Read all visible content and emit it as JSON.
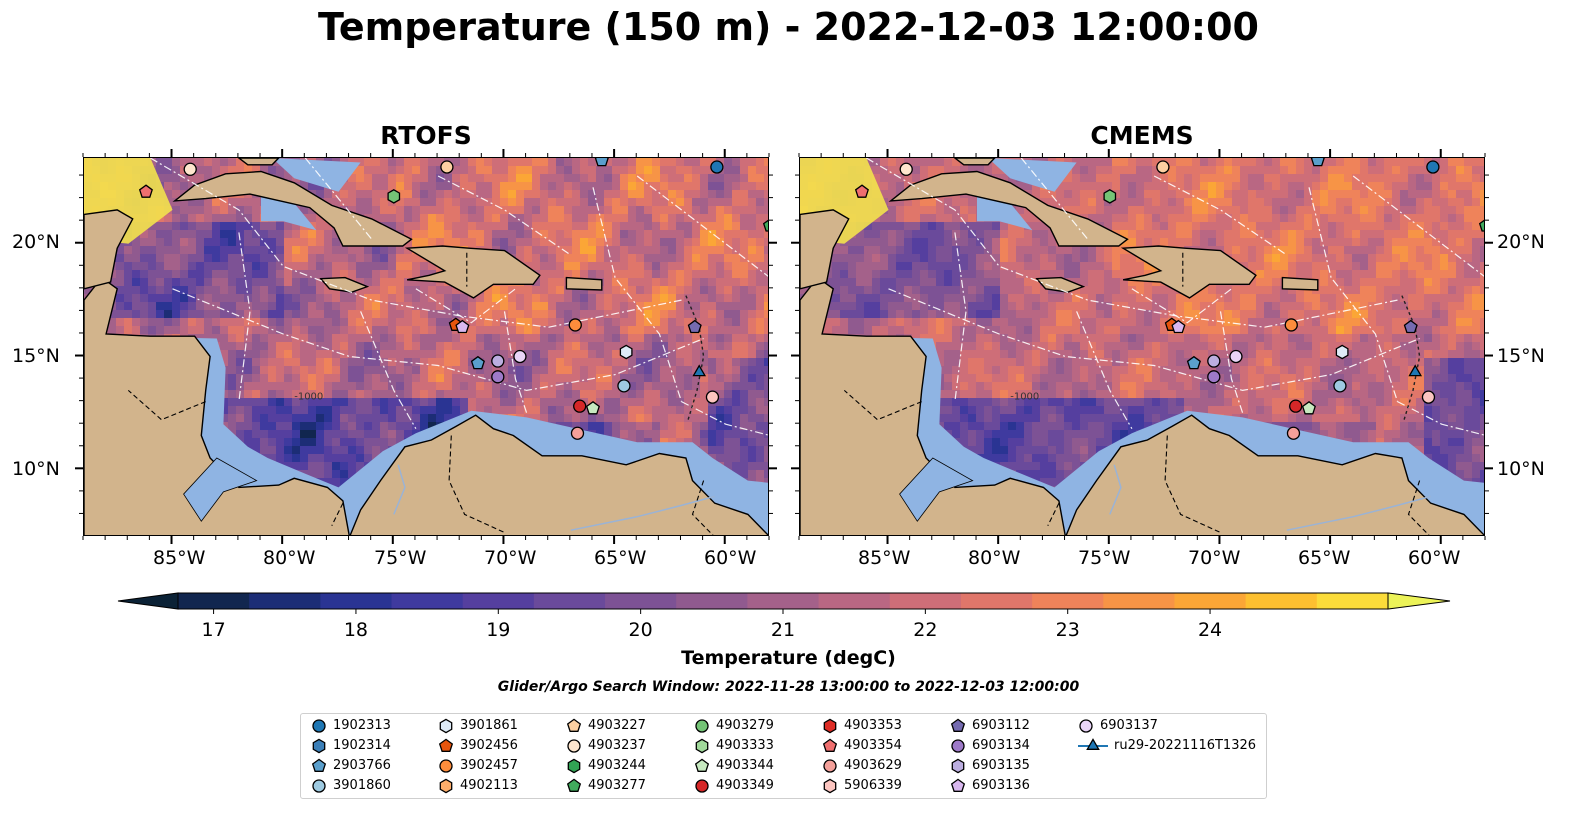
{
  "title": "Temperature (150 m) - 2022-12-03 12:00:00",
  "panels": [
    {
      "id": "rtofs",
      "title": "RTOFS",
      "warm_bias": 0
    },
    {
      "id": "cmems",
      "title": "CMEMS",
      "warm_bias": 1
    }
  ],
  "lon_ticks": [
    "85°W",
    "80°W",
    "75°W",
    "70°W",
    "65°W",
    "60°W"
  ],
  "lat_ticks": [
    "20°N",
    "15°N",
    "10°N"
  ],
  "contour_label": "-1000",
  "colorbar": {
    "label": "Temperature (degC)",
    "ticks": [
      "17",
      "18",
      "19",
      "20",
      "21",
      "22",
      "23",
      "24"
    ],
    "range": [
      16.75,
      24.5
    ],
    "levels_step": 0.5,
    "colors": [
      "#0b2236",
      "#11264f",
      "#1c2d76",
      "#2a3493",
      "#3f3a9f",
      "#553f9f",
      "#6a4a9b",
      "#7d5295",
      "#905a8f",
      "#a4618a",
      "#b96783",
      "#ce6e78",
      "#e0766a",
      "#ef835a",
      "#f79446",
      "#fba636",
      "#fdc030",
      "#fbdc3a",
      "#ecf358"
    ]
  },
  "search_window": "Glider/Argo Search Window: 2022-11-28 13:00:00 to 2022-12-03 12:00:00",
  "legend": [
    {
      "label": "1902313",
      "marker": "circle",
      "color": "#1f77b4"
    },
    {
      "label": "1902314",
      "marker": "hexagon",
      "color": "#3b7fb8"
    },
    {
      "label": "2903766",
      "marker": "pentagon",
      "color": "#5a9fcc"
    },
    {
      "label": "3901860",
      "marker": "circle",
      "color": "#9ecae1"
    },
    {
      "label": "3901861",
      "marker": "hexagon",
      "color": "#deebf7"
    },
    {
      "label": "3902456",
      "marker": "pentagon",
      "color": "#e6550d"
    },
    {
      "label": "3902457",
      "marker": "circle",
      "color": "#fd8d3c"
    },
    {
      "label": "4902113",
      "marker": "hexagon",
      "color": "#fdae6b"
    },
    {
      "label": "4903227",
      "marker": "pentagon",
      "color": "#fdd0a2"
    },
    {
      "label": "4903237",
      "marker": "circle",
      "color": "#fee6ce"
    },
    {
      "label": "4903244",
      "marker": "hexagon",
      "color": "#31a354"
    },
    {
      "label": "4903277",
      "marker": "pentagon",
      "color": "#41ab5d"
    },
    {
      "label": "4903279",
      "marker": "circle",
      "color": "#74c476"
    },
    {
      "label": "4903333",
      "marker": "hexagon",
      "color": "#a1d99b"
    },
    {
      "label": "4903344",
      "marker": "pentagon",
      "color": "#c7e9c0"
    },
    {
      "label": "4903349",
      "marker": "circle",
      "color": "#d62728"
    },
    {
      "label": "4903353",
      "marker": "hexagon",
      "color": "#de2d26"
    },
    {
      "label": "4903354",
      "marker": "pentagon",
      "color": "#ef6f6f"
    },
    {
      "label": "4903629",
      "marker": "circle",
      "color": "#f4a09a"
    },
    {
      "label": "5906339",
      "marker": "hexagon",
      "color": "#fcc5c0"
    },
    {
      "label": "6903112",
      "marker": "pentagon",
      "color": "#756bb1"
    },
    {
      "label": "6903134",
      "marker": "circle",
      "color": "#9e7ac9"
    },
    {
      "label": "6903135",
      "marker": "hexagon",
      "color": "#bcaee0"
    },
    {
      "label": "6903136",
      "marker": "pentagon",
      "color": "#d9b8ef"
    },
    {
      "label": "6903137",
      "marker": "circle",
      "color": "#e9d4f7"
    },
    {
      "label": "ru29-20221116T1326",
      "marker": "triangle-line",
      "color": "#1f77b4"
    }
  ],
  "map_points": [
    {
      "lon": -84.2,
      "lat": 23.3,
      "color": "#fee6ce",
      "marker": "circle"
    },
    {
      "lon": -86.2,
      "lat": 22.3,
      "color": "#ef6f6f",
      "marker": "pentagon"
    },
    {
      "lon": -72.6,
      "lat": 23.4,
      "color": "#fdd0a2",
      "marker": "circle"
    },
    {
      "lon": -75.0,
      "lat": 22.1,
      "color": "#74c476",
      "marker": "hexagon"
    },
    {
      "lon": -65.6,
      "lat": 23.7,
      "color": "#5a9fcc",
      "marker": "pentagon"
    },
    {
      "lon": -60.4,
      "lat": 23.4,
      "color": "#1f77b4",
      "marker": "circle"
    },
    {
      "lon": -58.0,
      "lat": 20.8,
      "color": "#41ab5d",
      "marker": "pentagon"
    },
    {
      "lon": -72.2,
      "lat": 16.4,
      "color": "#e6550d",
      "marker": "pentagon"
    },
    {
      "lon": -71.9,
      "lat": 16.3,
      "color": "#d9b8ef",
      "marker": "pentagon"
    },
    {
      "lon": -66.8,
      "lat": 16.4,
      "color": "#fd8d3c",
      "marker": "circle"
    },
    {
      "lon": -71.2,
      "lat": 14.7,
      "color": "#5a9fcc",
      "marker": "pentagon"
    },
    {
      "lon": -70.3,
      "lat": 14.8,
      "color": "#bcaee0",
      "marker": "circle"
    },
    {
      "lon": -70.3,
      "lat": 14.1,
      "color": "#9e7ac9",
      "marker": "circle"
    },
    {
      "lon": -69.3,
      "lat": 15.0,
      "color": "#e9d4f7",
      "marker": "circle"
    },
    {
      "lon": -64.5,
      "lat": 15.2,
      "color": "#deebf7",
      "marker": "hexagon"
    },
    {
      "lon": -64.6,
      "lat": 13.7,
      "color": "#9ecae1",
      "marker": "circle"
    },
    {
      "lon": -61.4,
      "lat": 16.3,
      "color": "#756bb1",
      "marker": "pentagon"
    },
    {
      "lon": -61.2,
      "lat": 14.3,
      "color": "#1f77b4",
      "marker": "triangle"
    },
    {
      "lon": -60.6,
      "lat": 13.2,
      "color": "#fcc5c0",
      "marker": "circle"
    },
    {
      "lon": -66.6,
      "lat": 12.8,
      "color": "#d62728",
      "marker": "circle"
    },
    {
      "lon": -66.0,
      "lat": 12.7,
      "color": "#c7e9c0",
      "marker": "pentagon"
    },
    {
      "lon": -66.7,
      "lat": 11.6,
      "color": "#f4a09a",
      "marker": "circle"
    }
  ]
}
